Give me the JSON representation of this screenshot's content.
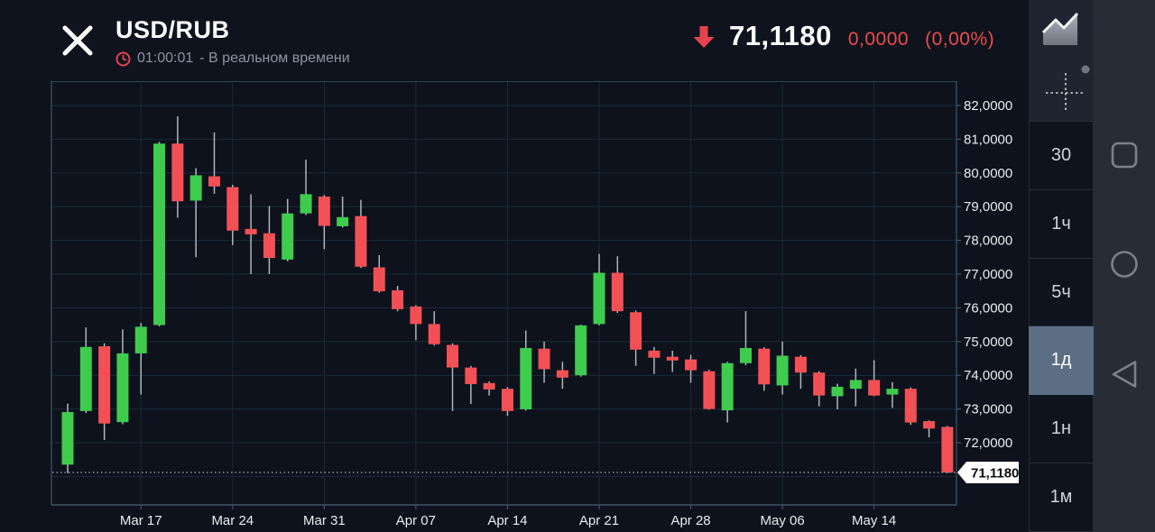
{
  "header": {
    "title": "USD/RUB",
    "time": "01:00:01",
    "realtime_note": "- В реальном времени",
    "price": "71,1180",
    "change": "0,0000",
    "change_percent": "(0,00%)",
    "accent_red": "#e8414e"
  },
  "sidebar": {
    "icons": [
      {
        "name": "chart-type-icon",
        "glyph": "area-chart"
      },
      {
        "name": "crosshair-icon",
        "glyph": "dashed-cross-with-dot"
      }
    ],
    "timeframes": [
      {
        "label": "30",
        "selected": false
      },
      {
        "label": "1ч",
        "selected": false
      },
      {
        "label": "5ч",
        "selected": false
      },
      {
        "label": "1д",
        "selected": true
      },
      {
        "label": "1н",
        "selected": false
      },
      {
        "label": "1м",
        "selected": false
      }
    ],
    "selected_bg": "#5b6e84"
  },
  "android_nav": {
    "icons": [
      {
        "name": "recents-square-icon"
      },
      {
        "name": "home-circle-icon"
      },
      {
        "name": "back-triangle-icon"
      }
    ],
    "icon_color": "#79818d"
  },
  "chart_data": {
    "type": "candlestick",
    "pair": "USD/RUB",
    "interval": "1d",
    "grid": true,
    "y_axis_range": [
      70.2,
      82.7
    ],
    "y_ticks": [
      {
        "value": 82,
        "label": "82,0000"
      },
      {
        "value": 81,
        "label": "81,0000"
      },
      {
        "value": 80,
        "label": "80,0000"
      },
      {
        "value": 79,
        "label": "79,0000"
      },
      {
        "value": 78,
        "label": "78,0000"
      },
      {
        "value": 77,
        "label": "77,0000"
      },
      {
        "value": 76,
        "label": "76,0000"
      },
      {
        "value": 75,
        "label": "75,0000"
      },
      {
        "value": 74,
        "label": "74,0000"
      },
      {
        "value": 73,
        "label": "73,0000"
      },
      {
        "value": 72,
        "label": "72,0000"
      }
    ],
    "y_grid_unlabeled": [
      71
    ],
    "x_ticks": [
      {
        "candle": 4,
        "label": "Mar 17"
      },
      {
        "candle": 9,
        "label": "Mar 24"
      },
      {
        "candle": 14,
        "label": "Mar 31"
      },
      {
        "candle": 19,
        "label": "Apr 07"
      },
      {
        "candle": 24,
        "label": "Apr 14"
      },
      {
        "candle": 29,
        "label": "Apr 21"
      },
      {
        "candle": 34,
        "label": "Apr 28"
      },
      {
        "candle": 39,
        "label": "May 06"
      },
      {
        "candle": 44,
        "label": "May 14"
      }
    ],
    "current_price": {
      "value": 71.118,
      "label": "71,1180"
    },
    "candles_ohlc": [
      [
        71.35,
        73.16,
        71.1,
        72.91
      ],
      [
        72.94,
        75.42,
        72.88,
        74.84
      ],
      [
        74.86,
        74.95,
        72.08,
        72.57
      ],
      [
        72.61,
        75.36,
        72.55,
        74.65
      ],
      [
        74.65,
        75.55,
        73.43,
        75.44
      ],
      [
        75.49,
        80.92,
        75.45,
        80.87
      ],
      [
        80.87,
        81.68,
        78.67,
        79.16
      ],
      [
        79.18,
        80.14,
        77.5,
        79.93
      ],
      [
        79.9,
        81.2,
        79.38,
        79.6
      ],
      [
        79.58,
        79.65,
        77.86,
        78.29
      ],
      [
        78.34,
        79.37,
        77.0,
        78.18
      ],
      [
        78.21,
        79.02,
        77.0,
        77.48
      ],
      [
        77.43,
        79.23,
        77.38,
        78.8
      ],
      [
        78.8,
        80.39,
        78.75,
        79.37
      ],
      [
        79.3,
        79.35,
        77.74,
        78.43
      ],
      [
        78.42,
        79.3,
        78.38,
        78.69
      ],
      [
        78.72,
        79.2,
        77.18,
        77.22
      ],
      [
        77.2,
        77.56,
        76.45,
        76.49
      ],
      [
        76.52,
        76.65,
        75.9,
        75.96
      ],
      [
        76.04,
        76.08,
        75.04,
        75.52
      ],
      [
        75.52,
        75.9,
        74.88,
        74.92
      ],
      [
        74.9,
        74.95,
        72.94,
        74.23
      ],
      [
        74.23,
        74.28,
        73.15,
        73.74
      ],
      [
        73.77,
        73.82,
        73.4,
        73.58
      ],
      [
        73.6,
        73.65,
        72.8,
        72.94
      ],
      [
        72.99,
        75.33,
        72.95,
        74.81
      ],
      [
        74.79,
        75.0,
        73.78,
        74.18
      ],
      [
        74.15,
        74.4,
        73.6,
        73.93
      ],
      [
        74.0,
        75.5,
        73.96,
        75.48
      ],
      [
        75.52,
        77.6,
        75.48,
        77.04
      ],
      [
        77.04,
        77.53,
        75.85,
        75.9
      ],
      [
        75.87,
        75.92,
        74.28,
        74.76
      ],
      [
        74.73,
        74.84,
        74.04,
        74.52
      ],
      [
        74.55,
        74.73,
        74.1,
        74.44
      ],
      [
        74.47,
        74.6,
        73.78,
        74.15
      ],
      [
        74.12,
        74.16,
        72.98,
        73.0
      ],
      [
        72.96,
        74.4,
        72.6,
        74.36
      ],
      [
        74.36,
        75.9,
        74.3,
        74.81
      ],
      [
        74.79,
        74.83,
        73.54,
        73.73
      ],
      [
        73.7,
        75.0,
        73.43,
        74.58
      ],
      [
        74.55,
        74.6,
        73.6,
        74.08
      ],
      [
        74.08,
        74.12,
        73.08,
        73.4
      ],
      [
        73.38,
        73.75,
        72.99,
        73.66
      ],
      [
        73.6,
        74.2,
        73.08,
        73.86
      ],
      [
        73.86,
        74.45,
        73.38,
        73.4
      ],
      [
        73.43,
        73.8,
        73.03,
        73.6
      ],
      [
        73.6,
        73.64,
        72.53,
        72.6
      ],
      [
        72.64,
        72.66,
        72.16,
        72.42
      ],
      [
        72.47,
        72.5,
        71.1,
        71.12
      ]
    ],
    "colors": {
      "up": "#3ecb4e",
      "down": "#f25055",
      "wick": "#b0b6bd",
      "grid": "#1c2a3a",
      "border": "#42546a",
      "dotted_line": "#98a1aa",
      "tag_bg": "#ffffff",
      "tag_text": "#0b0e13",
      "label": "#e9edf1"
    }
  }
}
